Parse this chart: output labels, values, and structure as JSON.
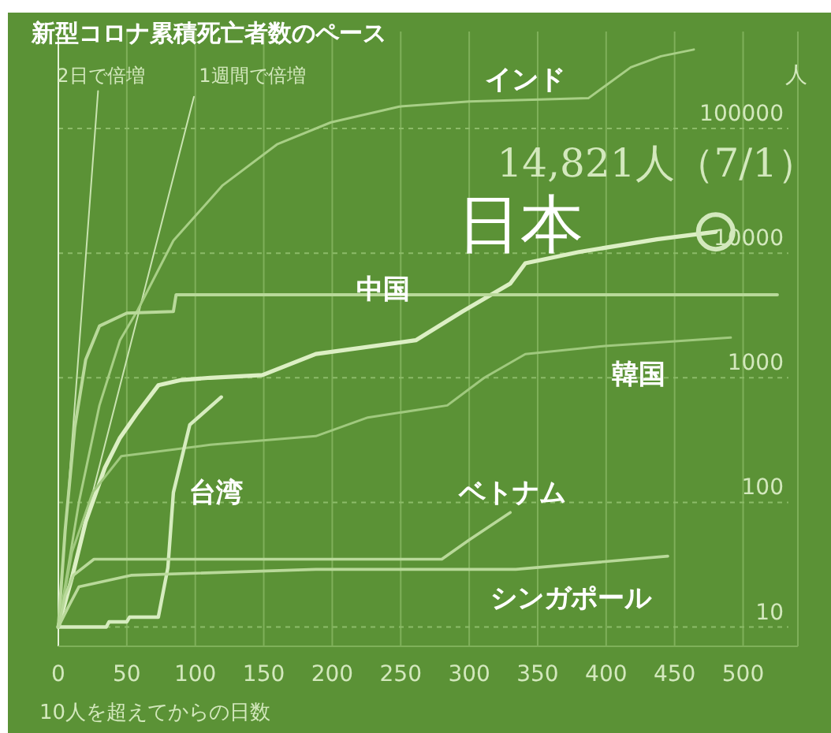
{
  "chart_data": {
    "type": "line",
    "title": "新型コロナ累積死亡者数のペース",
    "xlabel": "10人を超えてからの日数",
    "ylabel": "人",
    "log": "y",
    "grid": true,
    "legend": false,
    "marker": "none",
    "xlim": [
      0,
      540
    ],
    "xticks": [
      0,
      50,
      100,
      150,
      200,
      250,
      300,
      350,
      400,
      450,
      500
    ],
    "ylim": [
      7,
      600000
    ],
    "yticks": [
      10,
      100,
      1000,
      10000,
      100000
    ],
    "annotations": [
      {
        "text": "14,821人（7/1）",
        "x": 480,
        "y": 14821
      }
    ],
    "series": [
      {
        "name": "2日で倍増",
        "color": "#c9e3b0",
        "x": [
          0,
          29
        ],
        "values": [
          10,
          200000
        ]
      },
      {
        "name": "1週間で倍増",
        "color": "#c9e3b0",
        "x": [
          0,
          99
        ],
        "values": [
          10,
          180000
        ]
      },
      {
        "name": "インド",
        "color": "#a8cf86",
        "x": [
          0,
          15,
          30,
          45,
          58,
          84,
          120,
          160,
          199,
          249,
          300,
          387,
          418,
          440,
          464
        ],
        "values": [
          10,
          100,
          600,
          2000,
          3500,
          12600,
          35000,
          75000,
          112000,
          150000,
          165000,
          175000,
          310000,
          380000,
          430000
        ]
      },
      {
        "name": "日本",
        "color": "#dcefc4",
        "x": [
          0,
          10,
          20,
          34,
          45,
          57,
          73,
          90,
          111,
          149,
          188,
          261,
          295,
          330,
          341,
          380,
          437,
          480
        ],
        "values": [
          10,
          25,
          70,
          190,
          330,
          510,
          870,
          960,
          1000,
          1050,
          1550,
          2000,
          3400,
          5700,
          8300,
          10200,
          12900,
          14821
        ]
      },
      {
        "name": "中国",
        "color": "#b9d99a",
        "x": [
          0,
          5,
          12,
          20,
          30,
          50,
          84,
          86,
          525
        ],
        "values": [
          10,
          60,
          400,
          1400,
          2600,
          3300,
          3400,
          4640,
          4640
        ]
      },
      {
        "name": "韓国",
        "color": "#a0c97e",
        "x": [
          0,
          10,
          25,
          46,
          111,
          188,
          226,
          284,
          311,
          341,
          399,
          491
        ],
        "values": [
          10,
          40,
          120,
          235,
          290,
          340,
          480,
          600,
          1000,
          1550,
          1800,
          2100
        ]
      },
      {
        "name": "台湾",
        "color": "#d6ecbf",
        "x": [
          0,
          35,
          37,
          50,
          52,
          73,
          80,
          84,
          96,
          119
        ],
        "values": [
          10,
          10,
          11,
          11,
          12,
          12,
          30,
          120,
          420,
          700
        ]
      },
      {
        "name": "ベトナム",
        "color": "#b9d99a",
        "x": [
          0,
          5,
          11,
          26,
          280,
          300,
          330
        ],
        "values": [
          10,
          18,
          26,
          35,
          35,
          50,
          83
        ]
      },
      {
        "name": "シンガポール",
        "color": "#b9d99a",
        "x": [
          0,
          8,
          15,
          53,
          188,
          334,
          445
        ],
        "values": [
          10,
          15,
          21,
          26,
          29,
          29,
          37
        ]
      }
    ]
  }
}
